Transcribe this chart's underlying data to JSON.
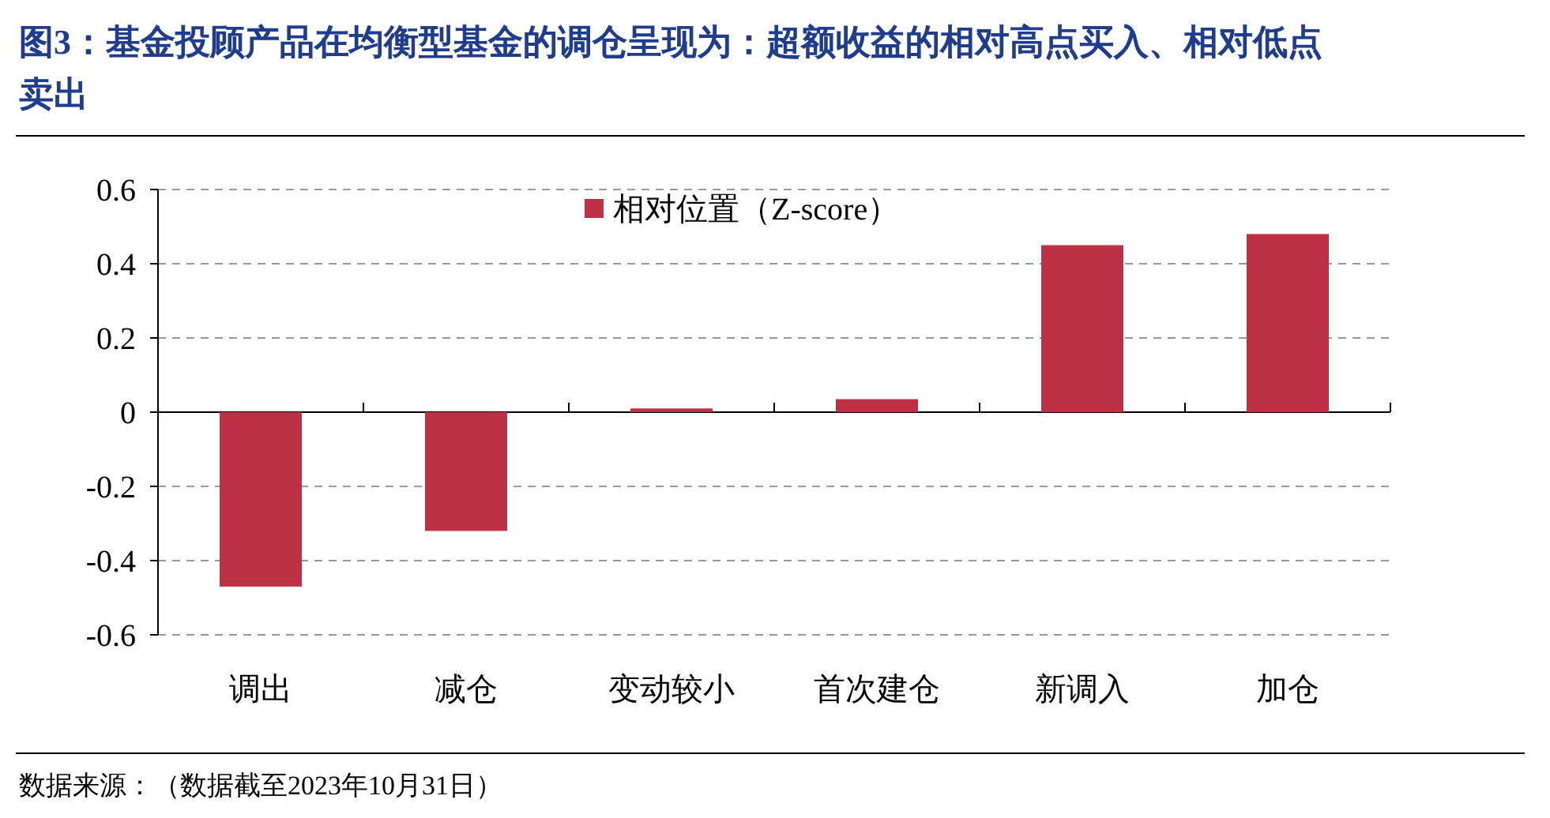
{
  "chart_data": {
    "type": "bar",
    "title": "图3：基金投顾产品在均衡型基金的调仓呈现为：超额收益的相对高点买入、相对低点卖出",
    "categories": [
      "调出",
      "减仓",
      "变动较小",
      "首次建仓",
      "新调入",
      "加仓"
    ],
    "series": [
      {
        "name": "相对位置（Z-score）",
        "color": "#be3144",
        "values": [
          -0.47,
          -0.32,
          0.01,
          0.035,
          0.45,
          0.48
        ]
      }
    ],
    "ylim": [
      -0.6,
      0.6
    ],
    "yticks": [
      -0.6,
      -0.4,
      -0.2,
      0,
      0.2,
      0.4,
      0.6
    ],
    "grid": "y",
    "legend": "top",
    "annotations": [
      "数据来源：（数据截至2023年10月31日）"
    ]
  }
}
